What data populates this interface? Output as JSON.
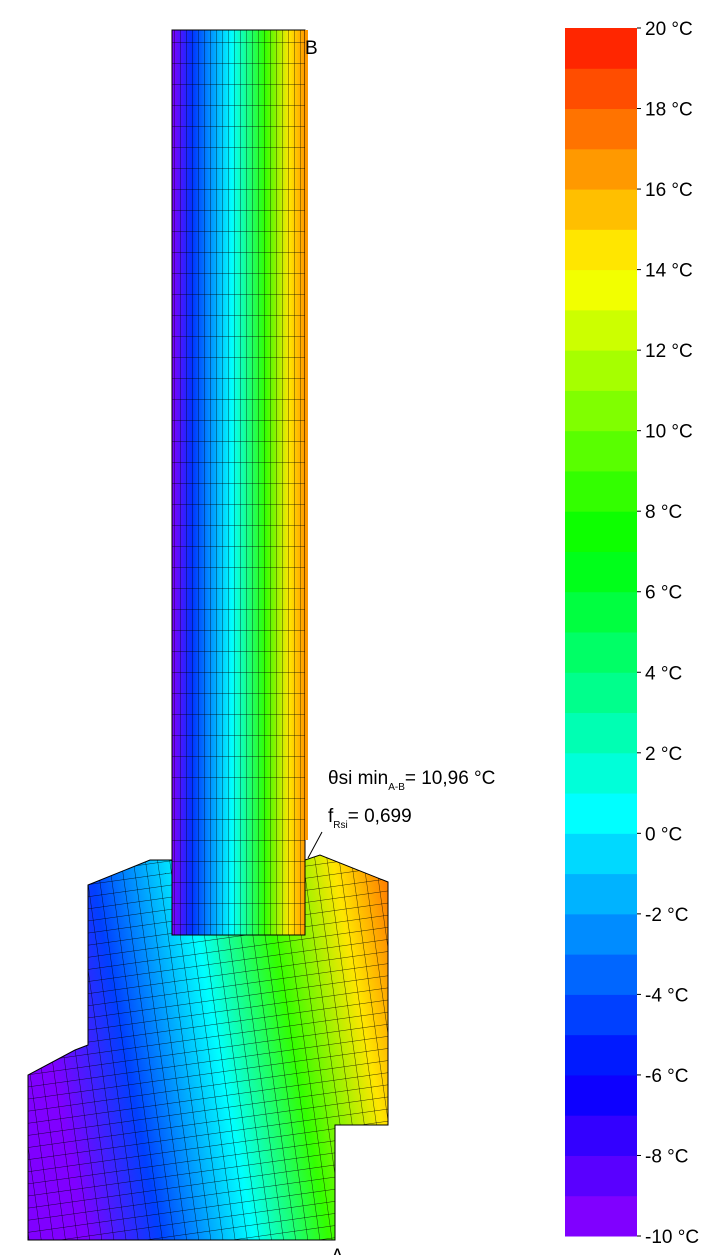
{
  "chart_data": {
    "type": "contour",
    "point_labels": [
      "B",
      "A"
    ],
    "annotation": {
      "theta": "θsi min",
      "theta_sub": "A-B",
      "theta_value": "= 10,96 °C",
      "f": "f",
      "f_sub": "Rsi",
      "f_value": "= 0,699"
    },
    "colorbar": {
      "lim": [
        -10,
        20
      ],
      "colors": [
        "#8000ff",
        "#5900ff",
        "#3300ff",
        "#0d00ff",
        "#001aff",
        "#0040ff",
        "#0066ff",
        "#008cff",
        "#00b3ff",
        "#00d9ff",
        "#00ffff",
        "#00ffd9",
        "#00ffb3",
        "#00ff8c",
        "#00ff66",
        "#00ff40",
        "#00ff1a",
        "#0dff00",
        "#33ff00",
        "#59ff00",
        "#80ff00",
        "#a6ff00",
        "#ccff00",
        "#f2ff00",
        "#ffe600",
        "#ffbf00",
        "#ff9900",
        "#ff7300",
        "#ff4d00",
        "#ff2600"
      ],
      "ticks": [
        {
          "value": -10,
          "label": "-10 °C"
        },
        {
          "value": -8,
          "label": "-8 °C"
        },
        {
          "value": -6,
          "label": "-6 °C"
        },
        {
          "value": -4,
          "label": "-4 °C"
        },
        {
          "value": -2,
          "label": "-2 °C"
        },
        {
          "value": 0,
          "label": "0 °C"
        },
        {
          "value": 2,
          "label": "2 °C"
        },
        {
          "value": 4,
          "label": "4 °C"
        },
        {
          "value": 6,
          "label": "6 °C"
        },
        {
          "value": 8,
          "label": "8 °C"
        },
        {
          "value": 10,
          "label": "10 °C"
        },
        {
          "value": 12,
          "label": "12 °C"
        },
        {
          "value": 14,
          "label": "14 °C"
        },
        {
          "value": 16,
          "label": "16 °C"
        },
        {
          "value": 18,
          "label": "18 °C"
        },
        {
          "value": 20,
          "label": "20 °C"
        }
      ]
    }
  }
}
